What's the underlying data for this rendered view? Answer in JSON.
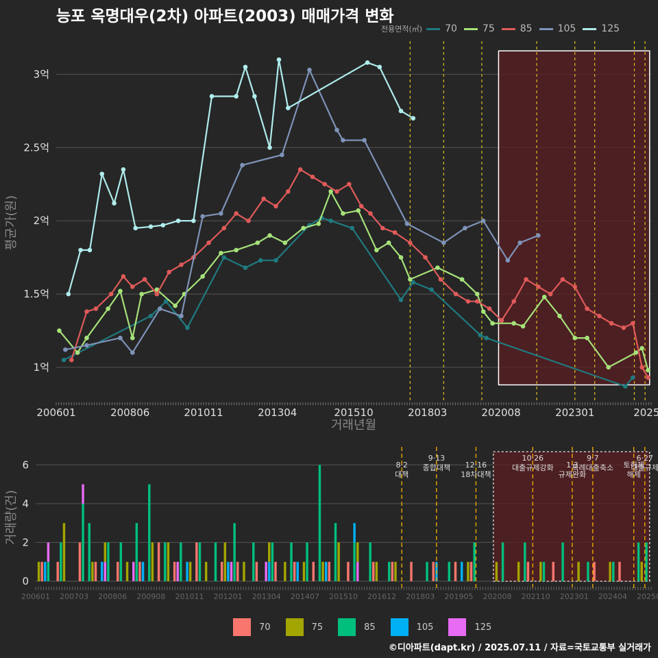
{
  "title": "능포 옥명대우(2차) 아파트(2003) 매매가격 변화",
  "source": "©디아파트(dapt.kr) / 2025.07.11 / 자료=국토교통부 실거래가",
  "colors": {
    "background": "#262626",
    "grid": "#555555",
    "highlight_fill": "#5a1e22",
    "policy_line": "#e0c020"
  },
  "top_legend": {
    "title": "전용면적(㎡)",
    "items": [
      {
        "label": "70",
        "color": "#1f7a80"
      },
      {
        "label": "75",
        "color": "#a6e27a"
      },
      {
        "label": "85",
        "color": "#e05a5a"
      },
      {
        "label": "105",
        "color": "#7e93b8"
      },
      {
        "label": "125",
        "color": "#b0ecec"
      }
    ]
  },
  "bottom_legend": {
    "items": [
      {
        "label": "70",
        "color": "#f8766d"
      },
      {
        "label": "75",
        "color": "#a3a500"
      },
      {
        "label": "85",
        "color": "#00bf7d"
      },
      {
        "label": "105",
        "color": "#00b0f6"
      },
      {
        "label": "125",
        "color": "#e76bf3"
      }
    ]
  },
  "chart_data": [
    {
      "type": "line",
      "title": "능포 옥명대우(2차) 아파트(2003) 매매가격 변화",
      "xlabel": "거래년월",
      "ylabel": "평균가(원)",
      "x_ticks": [
        "200601",
        "200806",
        "201011",
        "201304",
        "201510",
        "201803",
        "202008",
        "202301",
        "2025"
      ],
      "y_ticks": [
        {
          "value": 1.0,
          "label": "1억"
        },
        {
          "value": 1.5,
          "label": "1.5억"
        },
        {
          "value": 2.0,
          "label": "2억"
        },
        {
          "value": 2.5,
          "label": "2.5억"
        },
        {
          "value": 3.0,
          "label": "3억"
        }
      ],
      "xlim": [
        2006.0,
        2025.5
      ],
      "ylim": [
        0.77,
        3.25
      ],
      "highlight_range": [
        2020.5,
        2025.45
      ],
      "policy_lines": [
        2017.6,
        2018.7,
        2019.95,
        2021.75,
        2023.0,
        2023.65,
        2024.95,
        2025.3
      ],
      "series": [
        {
          "name": "70",
          "x": [
            2006.25,
            2009.1,
            2009.6,
            2010.3,
            2011.5,
            2012.2,
            2012.7,
            2013.2,
            2014.3,
            2014.7,
            2015.0,
            2015.7,
            2017.3,
            2017.7,
            2018.3,
            2019.9,
            2020.1,
            2024.65,
            2024.9
          ],
          "y": [
            1.05,
            1.35,
            1.45,
            1.27,
            1.75,
            1.68,
            1.73,
            1.73,
            1.97,
            2.02,
            2.0,
            1.95,
            1.46,
            1.58,
            1.53,
            1.22,
            1.2,
            0.87,
            0.93
          ]
        },
        {
          "name": "75",
          "x": [
            2006.1,
            2006.7,
            2007.0,
            2007.7,
            2008.1,
            2008.5,
            2008.8,
            2009.3,
            2009.9,
            2010.2,
            2010.8,
            2011.4,
            2011.9,
            2012.6,
            2013.0,
            2013.5,
            2014.1,
            2014.6,
            2015.0,
            2015.4,
            2015.9,
            2016.5,
            2016.9,
            2017.3,
            2017.6,
            2018.5,
            2019.3,
            2019.8,
            2020.0,
            2020.3,
            2021.0,
            2021.3,
            2022.0,
            2022.5,
            2023.0,
            2023.4,
            2024.1,
            2025.0,
            2025.2,
            2025.4
          ],
          "y": [
            1.25,
            1.1,
            1.2,
            1.4,
            1.52,
            1.2,
            1.5,
            1.53,
            1.42,
            1.5,
            1.62,
            1.78,
            1.8,
            1.85,
            1.9,
            1.85,
            1.95,
            1.98,
            2.2,
            2.05,
            2.07,
            1.8,
            1.85,
            1.75,
            1.6,
            1.68,
            1.6,
            1.5,
            1.38,
            1.3,
            1.3,
            1.28,
            1.48,
            1.35,
            1.2,
            1.2,
            1.0,
            1.1,
            1.13,
            0.98
          ]
        },
        {
          "name": "85",
          "x": [
            2006.5,
            2007.0,
            2007.3,
            2007.8,
            2008.2,
            2008.5,
            2008.9,
            2009.3,
            2009.7,
            2010.1,
            2010.5,
            2011.0,
            2011.5,
            2011.9,
            2012.3,
            2012.8,
            2013.2,
            2013.6,
            2014.0,
            2014.4,
            2014.8,
            2015.2,
            2015.6,
            2016.0,
            2016.3,
            2016.7,
            2017.1,
            2017.6,
            2018.1,
            2018.6,
            2019.1,
            2019.5,
            2019.8,
            2020.2,
            2020.6,
            2021.0,
            2021.4,
            2021.8,
            2022.2,
            2022.6,
            2023.0,
            2023.4,
            2023.8,
            2024.2,
            2024.6,
            2024.9,
            2025.2,
            2025.4
          ],
          "y": [
            1.05,
            1.38,
            1.4,
            1.5,
            1.62,
            1.55,
            1.6,
            1.5,
            1.65,
            1.7,
            1.75,
            1.85,
            1.95,
            2.05,
            2.0,
            2.15,
            2.1,
            2.2,
            2.35,
            2.3,
            2.25,
            2.2,
            2.25,
            2.1,
            2.05,
            1.95,
            1.92,
            1.85,
            1.75,
            1.6,
            1.5,
            1.45,
            1.45,
            1.4,
            1.32,
            1.45,
            1.6,
            1.55,
            1.5,
            1.6,
            1.55,
            1.4,
            1.35,
            1.3,
            1.27,
            1.3,
            1.0,
            0.93
          ]
        },
        {
          "name": "105",
          "x": [
            2006.3,
            2007.0,
            2008.1,
            2008.5,
            2009.4,
            2010.1,
            2010.8,
            2011.4,
            2012.1,
            2013.4,
            2014.3,
            2015.2,
            2015.4,
            2016.1,
            2017.5,
            2018.7,
            2019.4,
            2020.0,
            2020.8,
            2021.2,
            2021.8
          ],
          "y": [
            1.12,
            1.15,
            1.2,
            1.1,
            1.4,
            1.35,
            2.03,
            2.05,
            2.38,
            2.45,
            3.03,
            2.62,
            2.55,
            2.55,
            1.98,
            1.85,
            1.95,
            2.0,
            1.73,
            1.85,
            1.9
          ]
        },
        {
          "name": "125",
          "x": [
            2006.4,
            2006.8,
            2007.1,
            2007.5,
            2007.9,
            2008.2,
            2008.6,
            2009.1,
            2009.5,
            2010.0,
            2010.5,
            2011.1,
            2011.9,
            2012.2,
            2012.5,
            2013.0,
            2013.3,
            2013.6,
            2016.2,
            2016.6,
            2017.3,
            2017.7
          ],
          "y": [
            1.5,
            1.8,
            1.8,
            2.32,
            2.12,
            2.35,
            1.95,
            1.96,
            1.97,
            2.0,
            2.0,
            2.85,
            2.85,
            3.05,
            2.85,
            2.5,
            3.1,
            2.77,
            3.08,
            3.05,
            2.75,
            2.7
          ]
        }
      ]
    },
    {
      "type": "bar",
      "title": "",
      "xlabel": "",
      "ylabel": "거래량(건)",
      "x_ticks": [
        "200601",
        "200703",
        "200806",
        "200908",
        "201011",
        "201201",
        "201304",
        "201407",
        "201510",
        "201612",
        "201803",
        "201905",
        "202008",
        "202110",
        "202301",
        "202404",
        "202507"
      ],
      "y_ticks": [
        0,
        2,
        4,
        6
      ],
      "xlim": [
        2006.0,
        2025.5
      ],
      "ylim": [
        0,
        7
      ],
      "stack_order": [
        "85",
        "105",
        "125",
        "75",
        "70"
      ],
      "highlight_range": [
        2020.5,
        2025.45
      ],
      "policies": [
        {
          "x": 2017.6,
          "label": "8·2 대책"
        },
        {
          "x": 2018.7,
          "label": "9·13 종합대책"
        },
        {
          "x": 2019.95,
          "label": "12·16 18차대책"
        },
        {
          "x": 2021.75,
          "label": "10·26 대출규제강화"
        },
        {
          "x": 2023.0,
          "label": "1·3 규제완화"
        },
        {
          "x": 2023.65,
          "label": "9·7 특례대출축소"
        },
        {
          "x": 2024.95,
          "label": "토허제 해제"
        },
        {
          "x": 2025.3,
          "label": "6·27 대출규제"
        }
      ],
      "series": [
        {
          "name": "70",
          "x": [
            2006.2,
            2006.7,
            2007.4,
            2007.9,
            2008.6,
            2009.3,
            2009.9,
            2010.4,
            2011.1,
            2011.9,
            2012.4,
            2013.0,
            2013.6,
            2014.2,
            2014.8,
            2015.3,
            2015.9,
            2016.7,
            2017.3,
            2017.9,
            2018.6,
            2019.3,
            2019.8,
            2021.6,
            2022.4,
            2023.7,
            2024.5
          ],
          "values": [
            1,
            1,
            2,
            1,
            1,
            1,
            2,
            1,
            2,
            1,
            1,
            1,
            1,
            1,
            1,
            1,
            1,
            1,
            1,
            1,
            1,
            1,
            1,
            1,
            1,
            1,
            1
          ]
        },
        {
          "name": "75",
          "x": [
            2006.1,
            2006.9,
            2007.8,
            2008.2,
            2008.9,
            2009.7,
            2010.2,
            2010.9,
            2011.4,
            2012.0,
            2012.6,
            2013.4,
            2013.9,
            2014.5,
            2015.1,
            2015.6,
            2016.2,
            2016.8,
            2017.4,
            2019.7,
            2020.6,
            2021.3,
            2022.0,
            2023.2,
            2024.2,
            2025.2
          ],
          "values": [
            1,
            3,
            1,
            1,
            1,
            2,
            2,
            1,
            1,
            2,
            1,
            1,
            1,
            1,
            1,
            2,
            1,
            1,
            1,
            1,
            1,
            1,
            1,
            1,
            1,
            1
          ]
        },
        {
          "name": "85",
          "x": [
            2006.4,
            2006.8,
            2007.5,
            2007.7,
            2008.3,
            2008.7,
            2009.2,
            2009.6,
            2010.1,
            2010.6,
            2011.2,
            2011.7,
            2012.3,
            2012.9,
            2013.5,
            2014.1,
            2014.6,
            2015.0,
            2015.5,
            2016.1,
            2016.6,
            2017.2,
            2018.4,
            2019.1,
            2019.9,
            2020.8,
            2021.5,
            2022.1,
            2022.7,
            2023.5,
            2024.3,
            2025.1,
            2025.35
          ],
          "values": [
            1,
            2,
            4,
            3,
            2,
            2,
            3,
            5,
            2,
            2,
            2,
            2,
            3,
            2,
            2,
            2,
            2,
            6,
            3,
            2,
            2,
            1,
            1,
            1,
            2,
            2,
            2,
            1,
            2,
            1,
            1,
            2,
            2
          ]
        },
        {
          "name": "105",
          "x": [
            2006.3,
            2008.1,
            2009.4,
            2010.8,
            2012.1,
            2013.4,
            2014.3,
            2015.2,
            2016.1,
            2018.7,
            2019.5
          ],
          "values": [
            1,
            1,
            1,
            1,
            1,
            1,
            1,
            1,
            1,
            1,
            1
          ]
        },
        {
          "name": "125",
          "x": [
            2006.4,
            2007.5,
            2008.2,
            2009.1,
            2010.5,
            2012.2,
            2013.3,
            2016.2
          ],
          "values": [
            1,
            1,
            1,
            1,
            1,
            1,
            1,
            1
          ]
        }
      ]
    }
  ]
}
